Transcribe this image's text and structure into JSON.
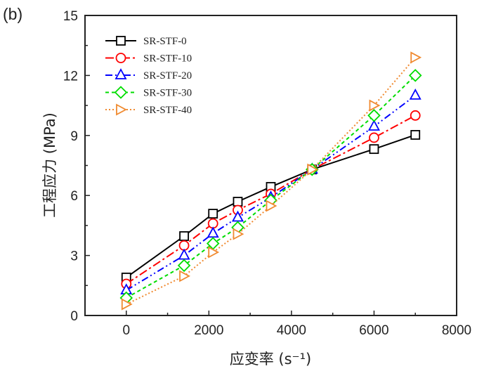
{
  "panel_label": "(b)",
  "chart_data": {
    "type": "line",
    "title": "",
    "xlabel": "应变率 (s⁻¹)",
    "ylabel": "工程应力 (MPa)",
    "xlim": [
      -1000,
      8000
    ],
    "ylim": [
      0,
      15
    ],
    "xticks": [
      0,
      2000,
      4000,
      6000,
      8000
    ],
    "yticks": [
      0,
      3,
      6,
      9,
      12,
      15
    ],
    "grid": false,
    "legend_position": "top-left",
    "x": [
      0,
      1400,
      2100,
      2700,
      3500,
      4500,
      6000,
      7000
    ],
    "series": [
      {
        "name": "SR-STF-0",
        "color": "#000000",
        "marker": "square",
        "dash": "",
        "values": [
          1.9,
          3.97,
          5.09,
          5.69,
          6.43,
          7.3,
          8.32,
          9.03
        ]
      },
      {
        "name": "SR-STF-10",
        "color": "#ff0000",
        "marker": "circle",
        "dash": "12,4,3,4",
        "values": [
          1.58,
          3.5,
          4.6,
          5.27,
          6.08,
          7.3,
          8.89,
          10.0
        ]
      },
      {
        "name": "SR-STF-20",
        "color": "#0000ff",
        "marker": "triangle-up",
        "dash": "10,4,2,4,2,4",
        "values": [
          1.26,
          3.0,
          4.1,
          4.9,
          5.9,
          7.3,
          9.45,
          11.0
        ]
      },
      {
        "name": "SR-STF-30",
        "color": "#00dd00",
        "marker": "diamond",
        "dash": "5,4",
        "values": [
          0.88,
          2.5,
          3.6,
          4.4,
          5.76,
          7.3,
          10.0,
          12.0
        ]
      },
      {
        "name": "SR-STF-40",
        "color": "#f08a30",
        "marker": "triangle-right",
        "dash": "2,3",
        "values": [
          0.56,
          1.97,
          3.16,
          4.07,
          5.48,
          7.3,
          10.5,
          12.9
        ]
      }
    ]
  }
}
